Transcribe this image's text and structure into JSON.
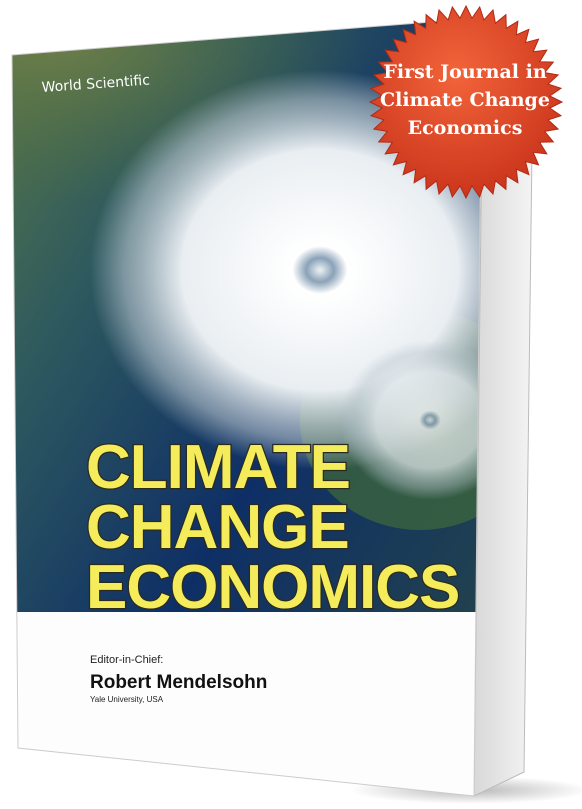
{
  "publisher": "World Scientific",
  "badge": {
    "lines": [
      "First Journal in",
      "Climate Change",
      "Economics"
    ]
  },
  "cover": {
    "title_lines": [
      "CLIMATE",
      "CHANGE",
      "ECONOMICS"
    ],
    "editor_label": "Editor-in-Chief:",
    "editor_name": "Robert Mendelsohn",
    "affiliation": "Yale University, USA"
  }
}
